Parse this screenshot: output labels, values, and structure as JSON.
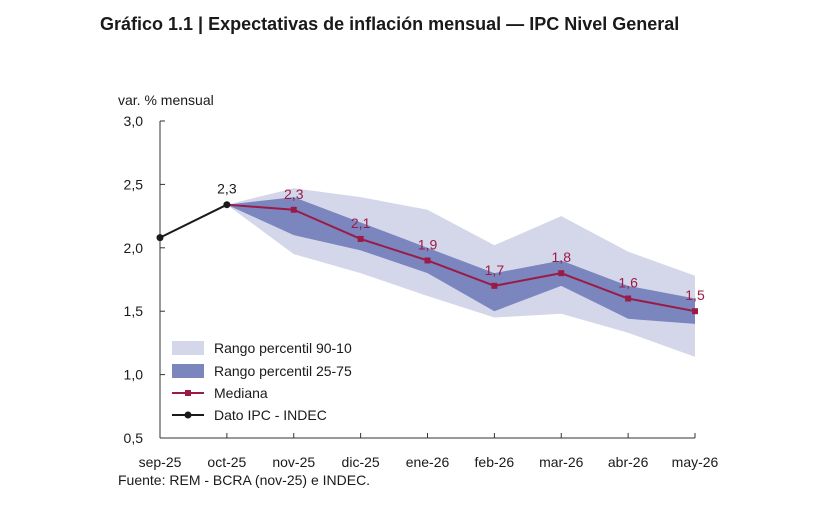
{
  "title": "Gráfico 1.1 | Expectativas de inflación mensual — IPC Nivel General",
  "source": "Fuente: REM - BCRA (nov-25) e INDEC.",
  "chart_data": {
    "type": "line",
    "ylabel": "var. % mensual",
    "ylim": [
      0.5,
      3.0
    ],
    "yticks": [
      "0,5",
      "1,0",
      "1,5",
      "2,0",
      "2,5",
      "3,0"
    ],
    "ytick_values": [
      0.5,
      1.0,
      1.5,
      2.0,
      2.5,
      3.0
    ],
    "categories": [
      "sep-25",
      "oct-25",
      "nov-25",
      "dic-25",
      "ene-26",
      "feb-26",
      "mar-26",
      "abr-26",
      "may-26"
    ],
    "series": [
      {
        "name": "Dato IPC - INDEC",
        "color": "#1a1a1a",
        "values": [
          2.08,
          2.34,
          null,
          null,
          null,
          null,
          null,
          null,
          null
        ],
        "labels": [
          null,
          "2,3",
          null,
          null,
          null,
          null,
          null,
          null,
          null
        ]
      },
      {
        "name": "Mediana",
        "color": "#9b1b47",
        "values": [
          null,
          2.34,
          2.3,
          2.07,
          1.9,
          1.7,
          1.8,
          1.6,
          1.5
        ],
        "labels": [
          null,
          null,
          "2,3",
          "2,1",
          "1,9",
          "1,7",
          "1,8",
          "1,6",
          "1,5"
        ]
      }
    ],
    "bands": [
      {
        "name": "Rango percentil 90-10",
        "color": "#d4d7ea",
        "upper": [
          null,
          2.34,
          2.47,
          2.4,
          2.3,
          2.02,
          2.25,
          1.97,
          1.78
        ],
        "lower": [
          null,
          2.34,
          1.95,
          1.8,
          1.62,
          1.45,
          1.48,
          1.33,
          1.14
        ]
      },
      {
        "name": "Rango percentil 25-75",
        "color": "#7a86bd",
        "upper": [
          null,
          2.34,
          2.4,
          2.2,
          2.0,
          1.8,
          1.9,
          1.7,
          1.6
        ],
        "lower": [
          null,
          2.34,
          2.1,
          1.98,
          1.8,
          1.5,
          1.7,
          1.44,
          1.4
        ]
      }
    ],
    "legend": {
      "position": "bottom-left",
      "items": [
        "Rango percentil 90-10",
        "Rango percentil 25-75",
        "Mediana",
        "Dato IPC - INDEC"
      ]
    }
  }
}
